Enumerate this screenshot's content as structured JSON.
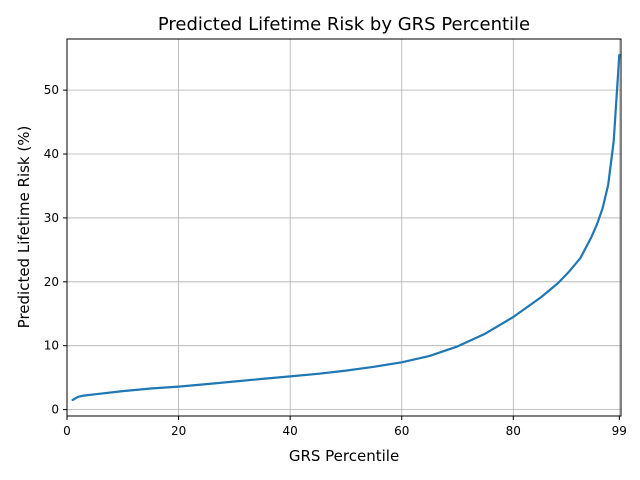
{
  "chart_data": {
    "type": "line",
    "title": "Predicted Lifetime Risk by GRS Percentile",
    "xlabel": "GRS Percentile",
    "ylabel": "Predicted Lifetime Risk (%)",
    "xlim": [
      0,
      99.3
    ],
    "ylim": [
      -1,
      58
    ],
    "xticks": [
      0,
      20,
      40,
      60,
      80,
      99
    ],
    "yticks": [
      0,
      10,
      20,
      30,
      40,
      50
    ],
    "grid": true,
    "colors": {
      "line": "#1f77b4"
    },
    "series": [
      {
        "x": [
          1,
          2,
          3,
          5,
          10,
          15,
          20,
          25,
          30,
          35,
          40,
          45,
          50,
          55,
          60,
          65,
          70,
          75,
          80,
          85,
          88,
          90,
          92,
          94,
          95,
          96,
          97,
          98,
          99
        ],
        "values": [
          1.5,
          2.0,
          2.2,
          2.4,
          2.9,
          3.3,
          3.6,
          4.0,
          4.4,
          4.8,
          5.2,
          5.6,
          6.1,
          6.7,
          7.4,
          8.4,
          9.9,
          11.9,
          14.5,
          17.6,
          19.8,
          21.6,
          23.7,
          27.0,
          29.0,
          31.5,
          35.2,
          42.0,
          55.5
        ]
      }
    ]
  }
}
